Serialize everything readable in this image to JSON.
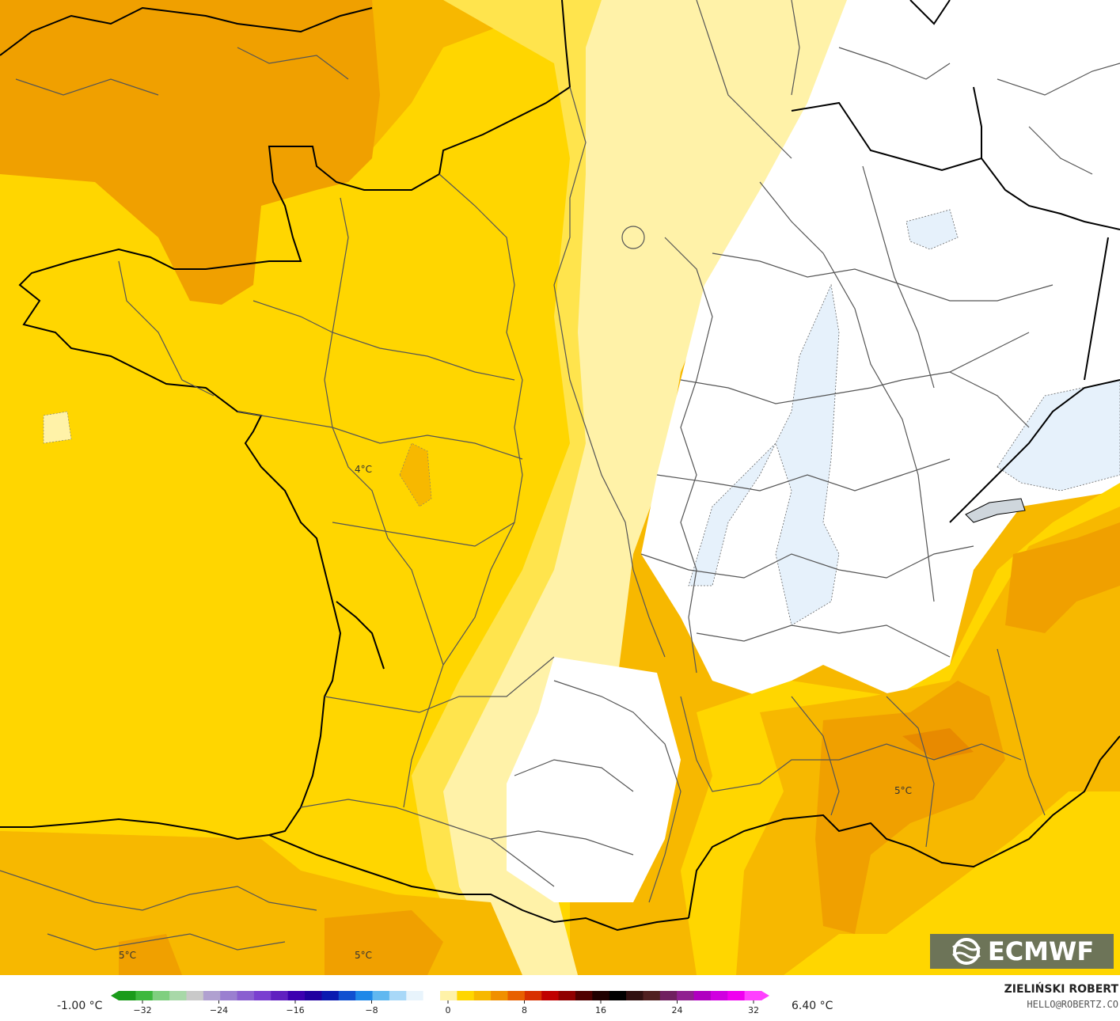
{
  "map": {
    "labels": [
      {
        "text": "4°C"
      },
      {
        "text": "5°C"
      },
      {
        "text": "5°C"
      },
      {
        "text": "5°C"
      }
    ],
    "colors": {
      "sea_orange": "#f7b800",
      "orange_dark": "#f0a000",
      "orange_deep": "#e88a00",
      "yellow": "#ffd600",
      "yellow_light": "#ffe44d",
      "pale_yellow": "#fff2a8",
      "very_pale": "#fff8d6",
      "white": "#ffffff",
      "ice": "#e6f1fb",
      "border": "#555555",
      "coast": "#000000"
    }
  },
  "logo": {
    "text": "ECMWF",
    "icon": "ecmwf-logo-icon"
  },
  "colorbar": {
    "min_label": "-1.00 °C",
    "max_label": "6.40 °C",
    "ticks": [
      "−32",
      "−24",
      "−16",
      "−8",
      "0",
      "8",
      "16",
      "24",
      "32"
    ],
    "palette": [
      "#1a9b1a",
      "#3cb83c",
      "#7fcf7f",
      "#a8d8a8",
      "#c9c9c9",
      "#b0a0d0",
      "#9a7fd0",
      "#8a5fd0",
      "#7a3fd0",
      "#6020c0",
      "#3c00b0",
      "#2000a0",
      "#0a1ab0",
      "#1050d0",
      "#1e88e8",
      "#60b8f0",
      "#a8d8f8",
      "#e8f4fc",
      "#ffffff",
      "#fff2a8",
      "#ffd600",
      "#f7b800",
      "#f09000",
      "#e86000",
      "#d83000",
      "#c00000",
      "#900000",
      "#500000",
      "#200000",
      "#000000",
      "#301010",
      "#502020",
      "#702060",
      "#902090",
      "#b000c0",
      "#d000e0",
      "#f000f0",
      "#ff40ff"
    ]
  },
  "credits": {
    "author": "ZIELIŃSKI ROBERT",
    "email": "HELLO@ROBERTZ.CO"
  }
}
